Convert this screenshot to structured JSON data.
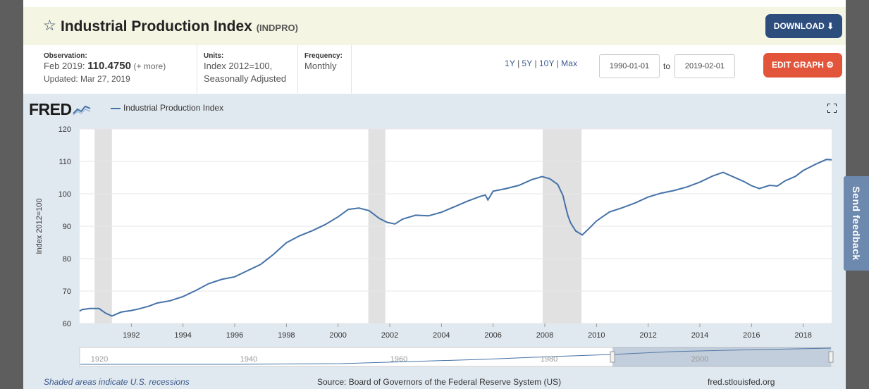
{
  "header": {
    "title": "Industrial Production Index",
    "code": "(INDPRO)",
    "download_label": "DOWNLOAD ⬇",
    "star_icon": "star-icon"
  },
  "observation": {
    "label": "Observation:",
    "date": "Feb 2019:",
    "value": "110.4750",
    "more": "(+ more)",
    "updated": "Updated: Mar 27, 2019"
  },
  "units": {
    "label": "Units:",
    "line1": "Index 2012=100,",
    "line2": "Seasonally Adjusted"
  },
  "frequency": {
    "label": "Frequency:",
    "value": "Monthly"
  },
  "ranges": [
    "1Y",
    "5Y",
    "10Y",
    "Max"
  ],
  "date_from": "1990-01-01",
  "date_to": "2019-02-01",
  "to_label": "to",
  "edit_label": "EDIT GRAPH ⚙",
  "chart_panel": {
    "logo": "FRED",
    "legend": "Industrial Production Index",
    "footer_left": "Shaded areas indicate U.S. recessions",
    "footer_mid": "Source: Board of Governors of the Federal Reserve System (US)",
    "footer_right": "fred.stlouisfed.org"
  },
  "feedback_label": "Send feedback",
  "colors": {
    "line": "#4572a7",
    "recession": "#e1e1e1",
    "download_btn": "#2d4d7d",
    "edit_btn": "#e2553b",
    "header_bg": "#f4f5e3",
    "panel_bg": "#e1e9f0"
  },
  "chart_data": {
    "type": "line",
    "title": "",
    "legend": [
      "Industrial Production Index"
    ],
    "xlabel": "",
    "ylabel": "Index 2012=100",
    "ylim": [
      60,
      120
    ],
    "yticks": [
      60,
      70,
      80,
      90,
      100,
      110,
      120
    ],
    "xlim": [
      1990.0,
      2019.1
    ],
    "xticks": [
      "1992",
      "1994",
      "1996",
      "1998",
      "2000",
      "2002",
      "2004",
      "2006",
      "2008",
      "2010",
      "2012",
      "2014",
      "2016",
      "2018"
    ],
    "recessions": [
      [
        1990.58,
        1991.25
      ],
      [
        2001.17,
        2001.83
      ],
      [
        2007.92,
        2009.42
      ]
    ],
    "series": [
      {
        "name": "Industrial Production Index",
        "x": [
          1990.0,
          1990.1,
          1990.4,
          1990.75,
          1991.0,
          1991.25,
          1991.6,
          1992.0,
          1992.3,
          1992.7,
          1993.0,
          1993.5,
          1994.0,
          1994.5,
          1995.0,
          1995.5,
          1996.0,
          1996.5,
          1997.0,
          1997.5,
          1998.0,
          1998.5,
          1999.0,
          1999.5,
          2000.0,
          2000.4,
          2000.8,
          2001.2,
          2001.6,
          2001.9,
          2002.2,
          2002.5,
          2003.0,
          2003.5,
          2004.0,
          2004.5,
          2005.0,
          2005.5,
          2005.7,
          2005.8,
          2006.0,
          2006.5,
          2007.0,
          2007.5,
          2007.9,
          2008.2,
          2008.5,
          2008.7,
          2008.8,
          2008.9,
          2009.0,
          2009.2,
          2009.45,
          2009.7,
          2010.0,
          2010.5,
          2011.0,
          2011.5,
          2012.0,
          2012.5,
          2013.0,
          2013.5,
          2014.0,
          2014.5,
          2014.9,
          2015.3,
          2015.7,
          2016.0,
          2016.3,
          2016.7,
          2017.0,
          2017.3,
          2017.7,
          2018.0,
          2018.5,
          2018.9,
          2019.1
        ],
        "values": [
          63.8,
          64.3,
          64.6,
          64.6,
          63.2,
          62.3,
          63.5,
          64.0,
          64.5,
          65.4,
          66.3,
          67.0,
          68.3,
          70.2,
          72.3,
          73.6,
          74.4,
          76.3,
          78.2,
          81.3,
          84.9,
          87.0,
          88.6,
          90.5,
          92.9,
          95.2,
          95.6,
          94.8,
          92.4,
          91.2,
          90.7,
          92.2,
          93.4,
          93.2,
          94.3,
          96.0,
          97.7,
          99.2,
          99.6,
          98.1,
          100.8,
          101.6,
          102.6,
          104.4,
          105.3,
          104.6,
          102.9,
          99.5,
          96.2,
          93.1,
          91.0,
          88.5,
          87.3,
          89.2,
          91.6,
          94.4,
          95.7,
          97.2,
          99.0,
          100.2,
          101.0,
          102.1,
          103.6,
          105.5,
          106.6,
          105.2,
          103.8,
          102.5,
          101.6,
          102.6,
          102.4,
          104.0,
          105.4,
          107.2,
          109.2,
          110.6,
          110.5
        ]
      }
    ]
  },
  "navigator": {
    "labels": [
      "1920",
      "1940",
      "1960",
      "1980",
      "2000"
    ]
  }
}
